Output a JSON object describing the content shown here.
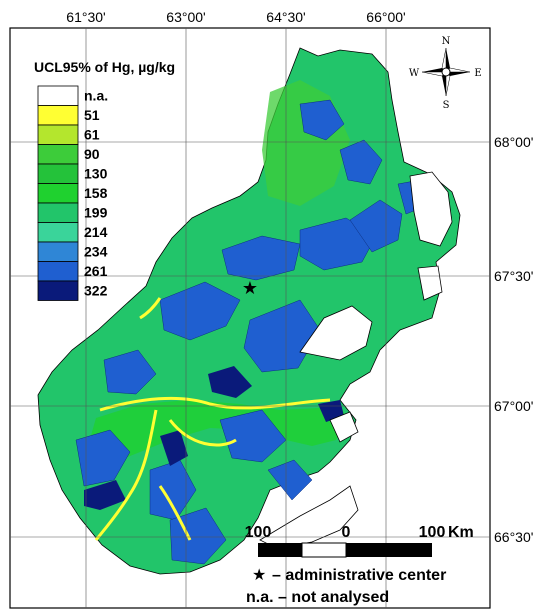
{
  "legend": {
    "title": "UCL95% of Hg, µg/kg",
    "items": [
      {
        "label": "n.a.",
        "color": "#ffffff"
      },
      {
        "label": "51",
        "color": "#ffff33"
      },
      {
        "label": "61",
        "color": "#b4e62d"
      },
      {
        "label": "90",
        "color": "#3dcc3a"
      },
      {
        "label": "130",
        "color": "#24c23a"
      },
      {
        "label": "158",
        "color": "#1fd12f"
      },
      {
        "label": "199",
        "color": "#22c56a"
      },
      {
        "label": "214",
        "color": "#3ad49a"
      },
      {
        "label": "234",
        "color": "#2f86d6"
      },
      {
        "label": "261",
        "color": "#1f5fd0"
      },
      {
        "label": "322",
        "color": "#0a1a7a"
      }
    ]
  },
  "grid": {
    "longitudes": [
      "61°30'",
      "63°00'",
      "64°30'",
      "66°00'"
    ],
    "latitudes": [
      "68°00'",
      "67°30'",
      "67°00'",
      "66°30'"
    ]
  },
  "compass": {
    "n": "N",
    "s": "S",
    "e": "E",
    "w": "W"
  },
  "scale_bar": {
    "left_label": "100",
    "mid_label": "0",
    "right_label": "100",
    "unit": "Km"
  },
  "notes": {
    "star_text": "– administrative center",
    "na_text": "n.a. – not analysed"
  },
  "colors": {
    "base": "#22c56a",
    "blue": "#1f5fd0",
    "dark": "#0a1a7a",
    "yellow": "#ffff33",
    "lime": "#b4e62d",
    "green": "#1fd12f"
  },
  "icons": {
    "admin_center": "star-icon",
    "north_arrow": "compass-rose-icon"
  }
}
